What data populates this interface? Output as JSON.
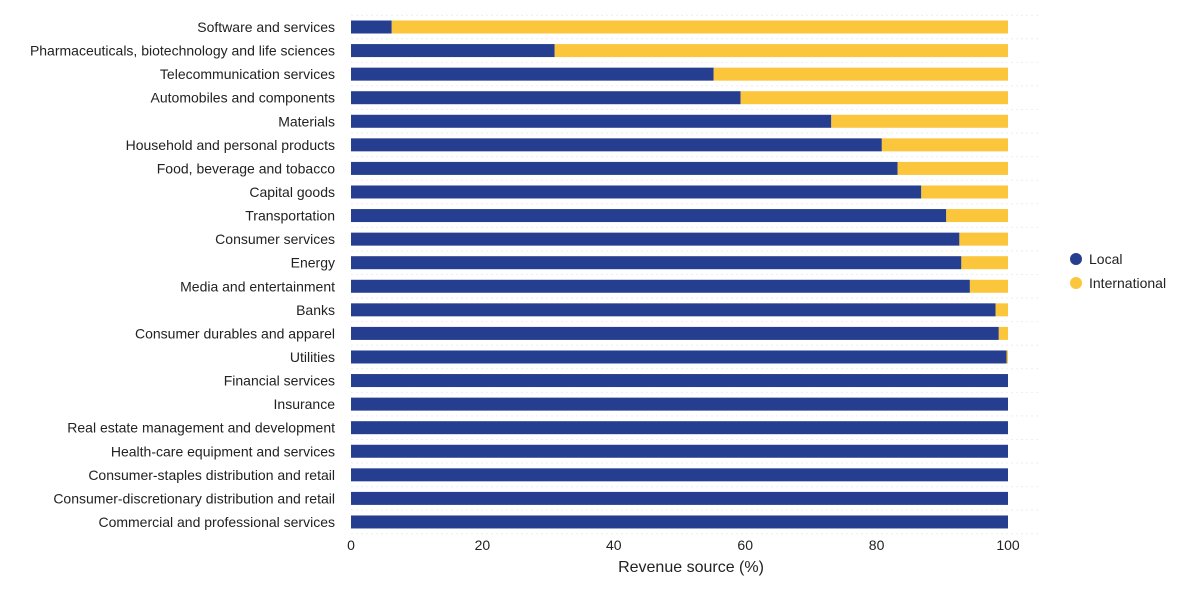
{
  "chart_data": {
    "type": "bar",
    "orientation": "horizontal",
    "stacked": true,
    "title": "",
    "xlabel": "Revenue source (%)",
    "ylabel": "",
    "xlim": [
      0,
      100
    ],
    "xticks": [
      0,
      20,
      40,
      60,
      80,
      100
    ],
    "grid": true,
    "legend_position": "right",
    "categories": [
      "Software and services",
      "Pharmaceuticals, biotechnology and life sciences",
      "Telecommunication services",
      "Automobiles and components",
      "Materials",
      "Household and personal products",
      "Food, beverage and tobacco",
      "Capital goods",
      "Transportation",
      "Consumer services",
      "Energy",
      "Media and entertainment",
      "Banks",
      "Consumer durables and apparel",
      "Utilities",
      "Financial services",
      "Insurance",
      "Real estate management and development",
      "Health-care equipment and services",
      "Consumer-staples distribution and retail",
      "Consumer-discretionary distribution and retail",
      "Commercial and professional services"
    ],
    "series": [
      {
        "name": "Local",
        "color": "#253e8f",
        "values": [
          6.2,
          31.0,
          55.2,
          59.3,
          73.1,
          80.8,
          83.2,
          86.8,
          90.6,
          92.6,
          92.9,
          94.2,
          98.1,
          98.6,
          99.8,
          100,
          100,
          100,
          100,
          100,
          100,
          100
        ]
      },
      {
        "name": "International",
        "color": "#fbc63b",
        "values": [
          93.8,
          69.0,
          44.8,
          40.7,
          26.9,
          19.2,
          16.8,
          13.2,
          9.4,
          7.4,
          7.1,
          5.8,
          1.9,
          1.4,
          0.2,
          0,
          0,
          0,
          0,
          0,
          0,
          0
        ]
      }
    ]
  }
}
